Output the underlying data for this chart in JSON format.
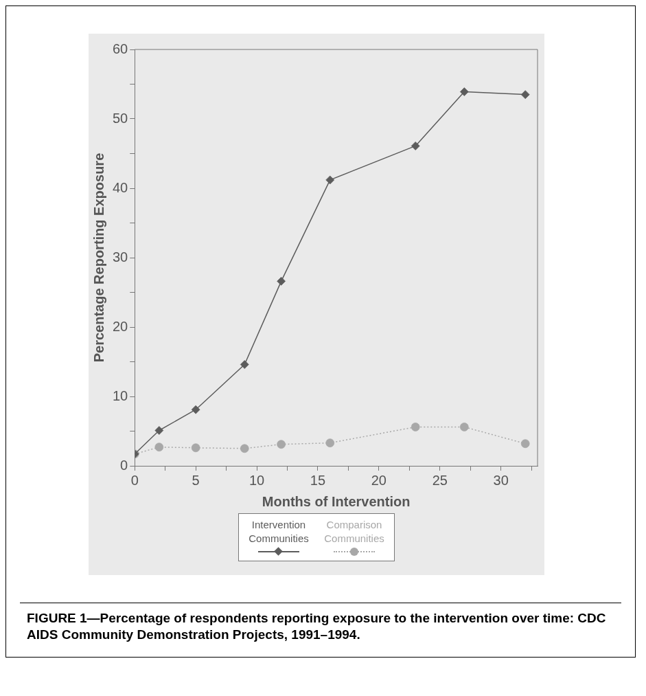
{
  "chart_data": {
    "type": "line",
    "xlabel": "Months of Intervention",
    "ylabel": "Percentage Reporting Exposure",
    "title": "FIGURE 1—Percentage of respondents reporting exposure to the intervention over time: CDC AIDS Community Demonstration Projects, 1991–1994.",
    "x": [
      0,
      2,
      5,
      9,
      12,
      16,
      23,
      27,
      32
    ],
    "series": [
      {
        "name": "Intervention Communities",
        "color": "#5c5c5c",
        "marker": "diamond",
        "line_style": "solid",
        "values": [
          1.7,
          5.1,
          8.1,
          14.6,
          26.6,
          41.2,
          46.1,
          53.9,
          53.5
        ]
      },
      {
        "name": "Comparison Communities",
        "color": "#a8a8a8",
        "marker": "circle",
        "line_style": "dotted",
        "values": [
          1.7,
          2.7,
          2.6,
          2.5,
          3.1,
          3.3,
          5.6,
          5.6,
          3.2
        ]
      }
    ],
    "xlim": [
      0,
      33
    ],
    "xticks": [
      0,
      {
        "value": 2.5,
        "label": null
      },
      5,
      {
        "value": 7.5,
        "label": null
      },
      10,
      {
        "value": 12.5,
        "label": null
      },
      15,
      {
        "value": 17.5,
        "label": null
      },
      20,
      {
        "value": 22.5,
        "label": null
      },
      25,
      {
        "value": 27.5,
        "label": null
      },
      30,
      {
        "value": 32.5,
        "label": null
      }
    ],
    "ylim": [
      0,
      60
    ],
    "yticks": [
      0,
      {
        "value": 5,
        "label": null
      },
      10,
      {
        "value": 15,
        "label": null
      },
      20,
      {
        "value": 25,
        "label": null
      },
      30,
      {
        "value": 35,
        "label": null
      },
      40,
      {
        "value": 45,
        "label": null
      },
      50,
      {
        "value": 55,
        "label": null
      },
      60
    ],
    "grid": false,
    "legend": "bottom"
  }
}
